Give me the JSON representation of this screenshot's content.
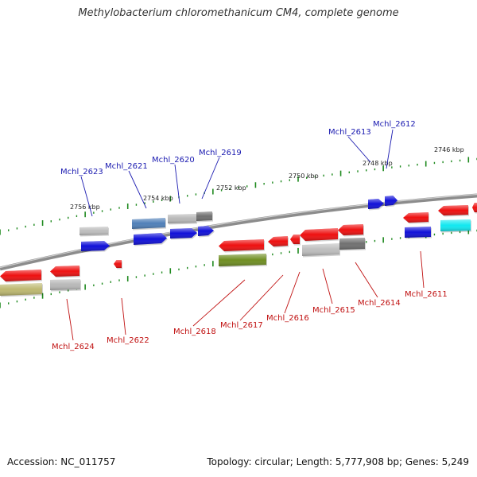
{
  "title": "Methylobacterium chloromethanicum CM4, complete genome",
  "footer": {
    "accession": "Accession: NC_011757",
    "topology": "Topology: circular; Length: 5,777,908 bp; Genes: 5,249"
  },
  "colors": {
    "backbone": "#8c8c8c",
    "label_forward": "#1a1ab0",
    "label_reverse": "#c01010",
    "tick": "#1f8a1f"
  },
  "scale_labels": [
    "2756 kbp",
    "2754 kbp",
    "2752 kbp",
    "2750 kbp",
    "2748 kbp",
    "2746 kbp"
  ],
  "gene_labels_top": [
    "Mchl_2623",
    "Mchl_2621",
    "Mchl_2620",
    "Mchl_2619",
    "Mchl_2613",
    "Mchl_2612"
  ],
  "gene_labels_bottom": [
    "Mchl_2624",
    "Mchl_2622",
    "Mchl_2618",
    "Mchl_2617",
    "Mchl_2616",
    "Mchl_2615",
    "Mchl_2614",
    "Mchl_2611"
  ]
}
